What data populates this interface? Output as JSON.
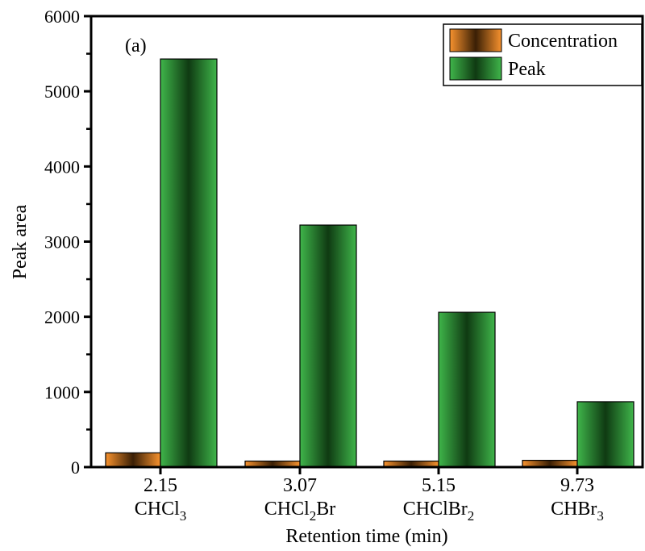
{
  "chart_data": {
    "type": "bar",
    "panel_label": "(a)",
    "xlabel": "Retention time (min)",
    "ylabel": "Peak area",
    "ylim": [
      0,
      6000
    ],
    "yticks": [
      0,
      1000,
      2000,
      3000,
      4000,
      5000,
      6000
    ],
    "categories": [
      {
        "time": "2.15",
        "compound": "CHCl",
        "sub": "3",
        "tail": ""
      },
      {
        "time": "3.07",
        "compound": "CHCl",
        "sub": "2",
        "tail": "Br"
      },
      {
        "time": "5.15",
        "compound": "CHClBr",
        "sub": "2",
        "tail": ""
      },
      {
        "time": "9.73",
        "compound": "CHBr",
        "sub": "3",
        "tail": ""
      }
    ],
    "series": [
      {
        "name": "Concentration",
        "values": [
          190,
          80,
          80,
          90
        ],
        "color": "#f5841f"
      },
      {
        "name": "Peak",
        "values": [
          5430,
          3220,
          2060,
          870
        ],
        "color": "#3bab47"
      }
    ],
    "legend_position": "top-right",
    "grid": false
  }
}
